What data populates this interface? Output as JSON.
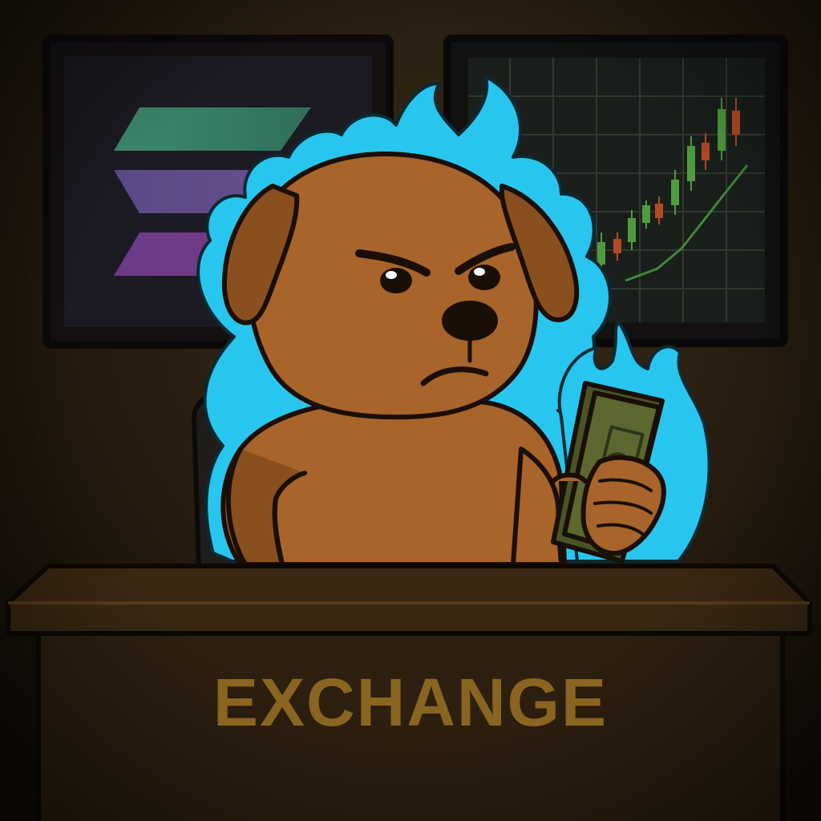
{
  "desk": {
    "label": "EXCHANGE"
  },
  "icons": {
    "logo": "solana-logo-icon",
    "chart": "candlestick-chart-icon",
    "money": "dollar-bill-icon",
    "aura": "blue-flame-icon"
  },
  "colors": {
    "background": "#1d160d",
    "fur": "#a8642a",
    "fur_shadow": "#8a4f1f",
    "flame": "#28c6ee",
    "money": "#5c6830",
    "desk": "#3a2812",
    "desk_label": "#8a6421",
    "candle_up": "#4f9c3e",
    "candle_down": "#b34a26",
    "logo_top": "#3e8a6e",
    "logo_middle": "#6a4f8a",
    "logo_bottom": "#7a3f86"
  }
}
